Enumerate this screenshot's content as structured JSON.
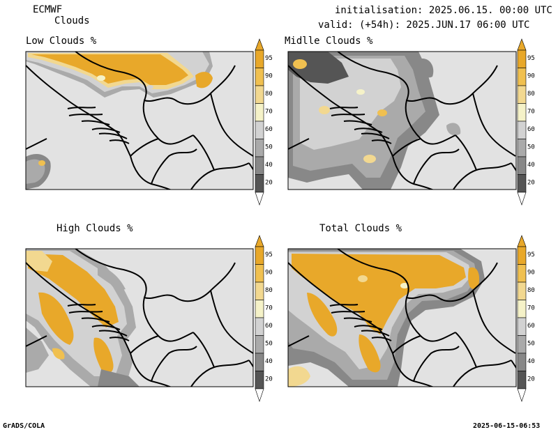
{
  "header": {
    "model": "ECMWF",
    "product": "Clouds",
    "initialisation": "initialisation: 2025.06.15. 00:00 UTC",
    "valid": "valid: (+54h): 2025.JUN.17 06:00 UTC"
  },
  "panels": [
    {
      "title": "Low Clouds %"
    },
    {
      "title": "Midlle Clouds %"
    },
    {
      "title": "High Clouds %"
    },
    {
      "title": "Total Clouds %"
    }
  ],
  "colorbar": {
    "labels": [
      "95",
      "90",
      "80",
      "70",
      "60",
      "50",
      "40",
      "20"
    ],
    "colors": [
      "#e8a82a",
      "#f0c050",
      "#f2d890",
      "#f5f2c8",
      "#d2d2d2",
      "#aaaaaa",
      "#888888",
      "#555555"
    ]
  },
  "map_colors": {
    "background": "#e2e2e2",
    "border": "#000000"
  },
  "footer": {
    "left": "GrADS/COLA",
    "right": "2025-06-15-06:53"
  }
}
